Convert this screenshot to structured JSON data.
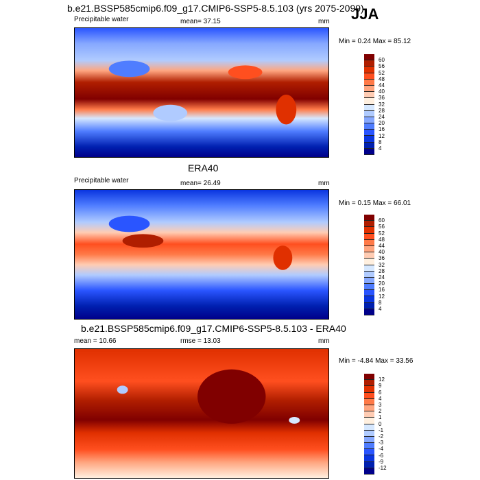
{
  "season": "JJA",
  "colorbar_colors": [
    "#800000",
    "#b01e00",
    "#e03000",
    "#ff4f1f",
    "#ff7a48",
    "#ffa680",
    "#ffccb3",
    "#fff0e0",
    "#d6e8ff",
    "#b0cbff",
    "#86a8ff",
    "#4f7dff",
    "#2a55ff",
    "#0a35e0",
    "#0020b0",
    "#00008a"
  ],
  "panels": [
    {
      "title": "b.e21.BSSP585cmip6.f09_g17.CMIP6-SSP5-8.5.103 (yrs 2075-2099)",
      "left_label": "Precipitable water",
      "center_label": "mean=  37.15",
      "units": "mm",
      "minmax": "Min =   0.24 Max =  85.12",
      "levels": [
        "60",
        "56",
        "52",
        "48",
        "44",
        "40",
        "36",
        "32",
        "28",
        "24",
        "20",
        "16",
        "12",
        "8",
        "4"
      ]
    },
    {
      "title": "ERA40",
      "left_label": "Precipitable water",
      "center_label": "mean=  26.49",
      "units": "mm",
      "minmax": "Min =   0.15 Max =  66.01",
      "levels": [
        "60",
        "56",
        "52",
        "48",
        "44",
        "40",
        "36",
        "32",
        "28",
        "24",
        "20",
        "16",
        "12",
        "8",
        "4"
      ]
    },
    {
      "title": "b.e21.BSSP585cmip6.f09_g17.CMIP6-SSP5-8.5.103 - ERA40",
      "left_label": "mean =  10.66",
      "center_label": "rmse =  13.03",
      "units": "mm",
      "minmax": "Min =  -4.84 Max =  33.56",
      "levels": [
        "12",
        "9",
        "6",
        "4",
        "3",
        "2",
        "1",
        "0",
        "-1",
        "-2",
        "-3",
        "-4",
        "-6",
        "-9",
        "-12"
      ]
    }
  ]
}
